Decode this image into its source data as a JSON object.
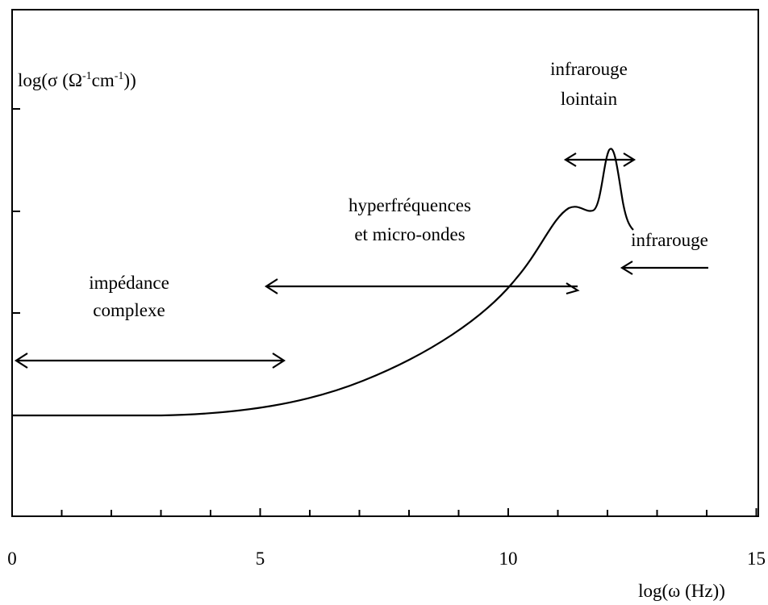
{
  "chart_data": {
    "type": "line",
    "y_label": [
      "log(σ (Ω",
      "-1",
      "cm",
      "-1",
      "))"
    ],
    "x_label": "log(ω (Hz))",
    "xlim": [
      0,
      15
    ],
    "xticks": [
      0,
      5,
      10,
      15
    ],
    "minor_xticks": [
      1,
      2,
      3,
      4,
      6,
      7,
      8,
      9,
      11,
      12,
      13,
      14
    ],
    "annotations": [
      "impédance",
      "complexe",
      "hyperfréquences",
      "et micro-ondes",
      "infrarouge",
      "lointain",
      "infrarouge"
    ]
  }
}
